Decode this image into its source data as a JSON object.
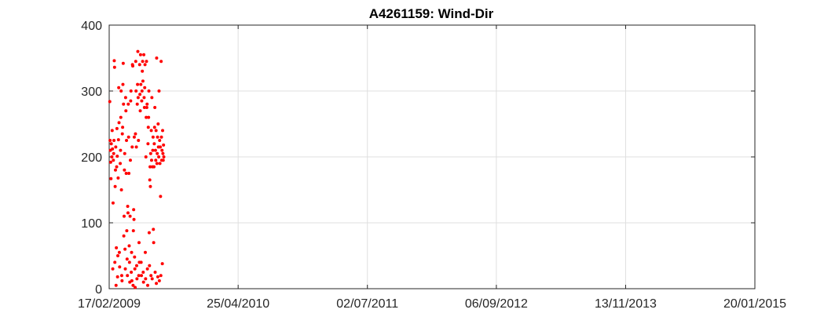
{
  "chart_data": {
    "type": "scatter",
    "title": "A4261159: Wind-Dir",
    "xlabel": "",
    "ylabel": "",
    "marker_color": "#ff0000",
    "grid": true,
    "ylim": [
      0,
      400
    ],
    "yticks": [
      0,
      100,
      200,
      300,
      400
    ],
    "xlim": [
      "2009-02-17",
      "2015-01-20"
    ],
    "xticks": [
      "17/02/2009",
      "25/04/2010",
      "02/07/2011",
      "06/09/2012",
      "13/11/2013",
      "20/01/2015"
    ],
    "series": [
      {
        "points": [
          [
            "2009-02-19",
            284
          ],
          [
            "2009-02-20",
            225
          ],
          [
            "2009-02-21",
            210
          ],
          [
            "2009-02-22",
            192
          ],
          [
            "2009-02-23",
            167
          ],
          [
            "2009-02-24",
            220
          ],
          [
            "2009-02-26",
            200
          ],
          [
            "2009-02-27",
            240
          ],
          [
            "2009-02-28",
            212
          ],
          [
            "2009-03-01",
            30
          ],
          [
            "2009-03-02",
            130
          ],
          [
            "2009-03-03",
            195
          ],
          [
            "2009-03-04",
            205
          ],
          [
            "2009-03-05",
            225
          ],
          [
            "2009-03-06",
            346
          ],
          [
            "2009-03-07",
            336
          ],
          [
            "2009-03-08",
            40
          ],
          [
            "2009-03-09",
            155
          ],
          [
            "2009-03-10",
            180
          ],
          [
            "2009-03-11",
            215
          ],
          [
            "2009-03-12",
            5
          ],
          [
            "2009-03-13",
            62
          ],
          [
            "2009-03-14",
            185
          ],
          [
            "2009-03-15",
            243
          ],
          [
            "2009-03-16",
            201
          ],
          [
            "2009-03-17",
            18
          ],
          [
            "2009-03-18",
            50
          ],
          [
            "2009-03-19",
            168
          ],
          [
            "2009-03-20",
            226
          ],
          [
            "2009-03-21",
            305
          ],
          [
            "2009-03-22",
            252
          ],
          [
            "2009-03-23",
            55
          ],
          [
            "2009-03-24",
            33
          ],
          [
            "2009-03-26",
            190
          ],
          [
            "2009-03-27",
            210
          ],
          [
            "2009-03-28",
            260
          ],
          [
            "2009-03-29",
            300
          ],
          [
            "2009-03-30",
            150
          ],
          [
            "2009-03-31",
            20
          ],
          [
            "2009-04-01",
            12
          ],
          [
            "2009-04-02",
            235
          ],
          [
            "2009-04-03",
            245
          ],
          [
            "2009-04-04",
            310
          ],
          [
            "2009-04-05",
            342
          ],
          [
            "2009-04-06",
            280
          ],
          [
            "2009-04-07",
            80
          ],
          [
            "2009-04-08",
            110
          ],
          [
            "2009-04-09",
            180
          ],
          [
            "2009-04-10",
            205
          ],
          [
            "2009-04-11",
            60
          ],
          [
            "2009-04-12",
            30
          ],
          [
            "2009-04-13",
            290
          ],
          [
            "2009-04-14",
            270
          ],
          [
            "2009-04-15",
            175
          ],
          [
            "2009-04-16",
            225
          ],
          [
            "2009-04-17",
            88
          ],
          [
            "2009-04-18",
            45
          ],
          [
            "2009-04-19",
            20
          ],
          [
            "2009-04-20",
            125
          ],
          [
            "2009-04-21",
            115
          ],
          [
            "2009-04-22",
            280
          ],
          [
            "2009-04-23",
            230
          ],
          [
            "2009-04-24",
            175
          ],
          [
            "2009-04-25",
            65
          ],
          [
            "2009-04-26",
            40
          ],
          [
            "2009-04-27",
            10
          ],
          [
            "2009-04-28",
            110
          ],
          [
            "2009-04-29",
            195
          ],
          [
            "2009-04-30",
            285
          ],
          [
            "2009-05-01",
            300
          ],
          [
            "2009-05-02",
            25
          ],
          [
            "2009-05-03",
            55
          ],
          [
            "2009-05-04",
            12
          ],
          [
            "2009-05-05",
            215
          ],
          [
            "2009-05-06",
            340
          ],
          [
            "2009-05-07",
            338
          ],
          [
            "2009-05-08",
            5
          ],
          [
            "2009-05-09",
            88
          ],
          [
            "2009-05-10",
            120
          ],
          [
            "2009-05-11",
            105
          ],
          [
            "2009-05-12",
            230
          ],
          [
            "2009-05-13",
            48
          ],
          [
            "2009-05-14",
            30
          ],
          [
            "2009-05-15",
            2
          ],
          [
            "2009-05-16",
            235
          ],
          [
            "2009-05-17",
            345
          ],
          [
            "2009-05-18",
            300
          ],
          [
            "2009-05-19",
            215
          ],
          [
            "2009-05-20",
            35
          ],
          [
            "2009-05-21",
            15
          ],
          [
            "2009-05-22",
            280
          ],
          [
            "2009-05-23",
            310
          ],
          [
            "2009-05-24",
            360
          ],
          [
            "2009-05-25",
            290
          ],
          [
            "2009-05-26",
            225
          ],
          [
            "2009-05-27",
            20
          ],
          [
            "2009-05-28",
            70
          ],
          [
            "2009-05-29",
            40
          ],
          [
            "2009-05-30",
            340
          ],
          [
            "2009-05-31",
            295
          ],
          [
            "2009-06-01",
            270
          ],
          [
            "2009-06-02",
            355
          ],
          [
            "2009-06-03",
            310
          ],
          [
            "2009-06-04",
            40
          ],
          [
            "2009-06-05",
            20
          ],
          [
            "2009-06-06",
            285
          ],
          [
            "2009-06-07",
            300
          ],
          [
            "2009-06-08",
            330
          ],
          [
            "2009-06-09",
            345
          ],
          [
            "2009-06-10",
            315
          ],
          [
            "2009-06-11",
            25
          ],
          [
            "2009-06-12",
            10
          ],
          [
            "2009-06-13",
            355
          ],
          [
            "2009-06-14",
            290
          ],
          [
            "2009-06-15",
            275
          ],
          [
            "2009-06-16",
            305
          ],
          [
            "2009-06-17",
            340
          ],
          [
            "2009-06-18",
            55
          ],
          [
            "2009-06-19",
            15
          ],
          [
            "2009-06-20",
            200
          ],
          [
            "2009-06-21",
            260
          ],
          [
            "2009-06-22",
            345
          ],
          [
            "2009-06-23",
            275
          ],
          [
            "2009-06-24",
            280
          ],
          [
            "2009-06-25",
            30
          ],
          [
            "2009-06-26",
            5
          ],
          [
            "2009-06-27",
            220
          ],
          [
            "2009-06-28",
            245
          ],
          [
            "2009-06-29",
            260
          ],
          [
            "2009-06-30",
            300
          ],
          [
            "2009-07-01",
            85
          ],
          [
            "2009-07-02",
            35
          ],
          [
            "2009-07-03",
            165
          ],
          [
            "2009-07-04",
            185
          ],
          [
            "2009-07-05",
            155
          ],
          [
            "2009-07-06",
            205
          ],
          [
            "2009-07-07",
            20
          ],
          [
            "2009-07-08",
            240
          ],
          [
            "2009-07-09",
            195
          ],
          [
            "2009-07-10",
            290
          ],
          [
            "2009-07-11",
            15
          ],
          [
            "2009-07-12",
            185
          ],
          [
            "2009-07-13",
            210
          ],
          [
            "2009-07-14",
            230
          ],
          [
            "2009-07-15",
            90
          ],
          [
            "2009-07-16",
            70
          ],
          [
            "2009-07-17",
            185
          ],
          [
            "2009-07-18",
            220
          ],
          [
            "2009-07-19",
            245
          ],
          [
            "2009-07-20",
            275
          ],
          [
            "2009-07-21",
            25
          ],
          [
            "2009-07-22",
            210
          ],
          [
            "2009-07-23",
            195
          ],
          [
            "2009-07-24",
            240
          ],
          [
            "2009-07-25",
            8
          ],
          [
            "2009-07-26",
            350
          ],
          [
            "2009-07-27",
            190
          ],
          [
            "2009-07-28",
            205
          ],
          [
            "2009-07-29",
            230
          ],
          [
            "2009-07-30",
            18
          ],
          [
            "2009-07-31",
            250
          ],
          [
            "2009-08-01",
            215
          ],
          [
            "2009-08-02",
            200
          ],
          [
            "2009-08-03",
            300
          ],
          [
            "2009-08-04",
            12
          ],
          [
            "2009-08-05",
            225
          ],
          [
            "2009-08-06",
            190
          ],
          [
            "2009-08-07",
            215
          ],
          [
            "2009-08-08",
            140
          ],
          [
            "2009-08-09",
            20
          ],
          [
            "2009-08-10",
            345
          ],
          [
            "2009-08-11",
            230
          ],
          [
            "2009-08-12",
            195
          ],
          [
            "2009-08-13",
            210
          ],
          [
            "2009-08-14",
            38
          ],
          [
            "2009-08-15",
            240
          ],
          [
            "2009-08-16",
            205
          ],
          [
            "2009-08-17",
            195
          ],
          [
            "2009-08-18",
            218
          ],
          [
            "2009-08-19",
            200
          ]
        ]
      }
    ]
  }
}
